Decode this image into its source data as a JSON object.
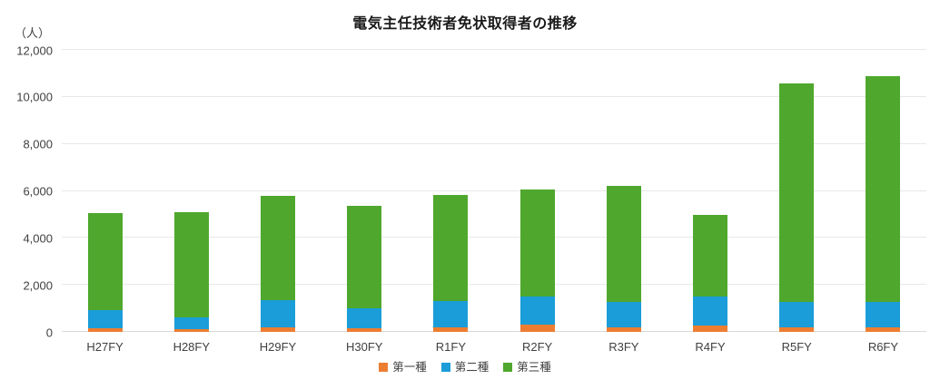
{
  "chart_data": {
    "type": "bar",
    "stacked": true,
    "title": "電気主任技術者免状取得者の推移",
    "unit_label": "（人）",
    "categories": [
      "H27FY",
      "H28FY",
      "H29FY",
      "H30FY",
      "R1FY",
      "R2FY",
      "R3FY",
      "R4FY",
      "R5FY",
      "R6FY"
    ],
    "series": [
      {
        "name": "第一種",
        "color": "#ED7D31",
        "values": [
          170,
          130,
          200,
          170,
          200,
          300,
          180,
          260,
          200,
          180
        ]
      },
      {
        "name": "第二種",
        "color": "#1A9DD8",
        "values": [
          770,
          490,
          1160,
          850,
          1100,
          1210,
          1080,
          1230,
          1060,
          1080
        ]
      },
      {
        "name": "第三種",
        "color": "#4FA82D",
        "values": [
          4120,
          4470,
          4410,
          4340,
          4520,
          4540,
          4970,
          3480,
          9310,
          9610
        ]
      }
    ],
    "totals": [
      5060,
      5090,
      5770,
      5360,
      5820,
      6050,
      6230,
      4970,
      10570,
      10870
    ],
    "ylim": [
      0,
      12000
    ],
    "yticks": [
      {
        "value": 0,
        "label": "0"
      },
      {
        "value": 2000,
        "label": "2,000"
      },
      {
        "value": 4000,
        "label": "4,000"
      },
      {
        "value": 6000,
        "label": "6,000"
      },
      {
        "value": 8000,
        "label": "8,000"
      },
      {
        "value": 10000,
        "label": "10,000"
      },
      {
        "value": 12000,
        "label": "12,000"
      }
    ],
    "grid": true,
    "legend_position": "bottom-center",
    "colors": {
      "gridline": "#e8e8e8",
      "baseline": "#d9d9d9",
      "axis_text": "#404040",
      "title_text": "#1a1a1a",
      "background": "#ffffff"
    }
  }
}
